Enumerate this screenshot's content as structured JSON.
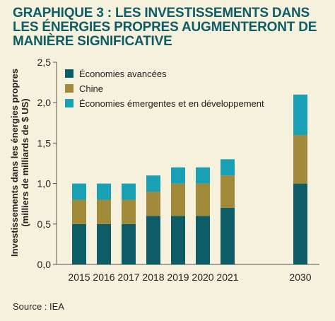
{
  "title_lines": [
    "GRAPHIQUE 3 : LES INVESTISSEMENTS DANS",
    "LES ÉNERGIES PROPRES AUGMENTERONT DE",
    "MANIÈRE SIGNIFICATIVE"
  ],
  "source": "Source : IEA",
  "colors": {
    "background": "#f6f1dc",
    "title": "#0d5c66",
    "axis": "#555555"
  },
  "chart_data": {
    "type": "bar",
    "stacked": true,
    "ylabel_lines": [
      "Investissements dans les énergies propres",
      "(milliers de milliards de $ US)"
    ],
    "categories": [
      "2015",
      "2016",
      "2017",
      "2018",
      "2019",
      "2020",
      "2021",
      "2030"
    ],
    "ylim": [
      0,
      2.5
    ],
    "yticks": [
      0,
      0.5,
      1,
      1.5,
      2,
      2.5
    ],
    "ytick_labels": [
      "0,0",
      "0,5",
      "1,0",
      "1,5",
      "2,0",
      "2,5"
    ],
    "grid": false,
    "legend_position": "top-left",
    "series": [
      {
        "name": "Économies avancées",
        "color": "#0d5c66",
        "values": [
          0.5,
          0.5,
          0.5,
          0.6,
          0.6,
          0.6,
          0.7,
          1.0
        ]
      },
      {
        "name": "Chine",
        "color": "#a08a3a",
        "values": [
          0.3,
          0.3,
          0.3,
          0.3,
          0.4,
          0.4,
          0.4,
          0.6
        ]
      },
      {
        "name": "Économies émergentes et en développement",
        "color": "#1aa0b4",
        "values": [
          0.2,
          0.2,
          0.2,
          0.2,
          0.2,
          0.2,
          0.2,
          0.5
        ]
      }
    ]
  }
}
